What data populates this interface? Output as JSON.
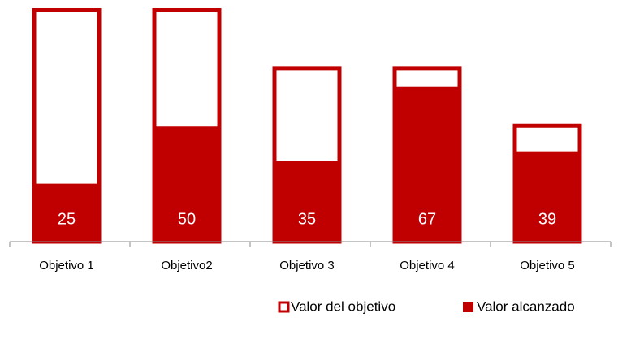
{
  "chart_data": {
    "type": "bar",
    "categories": [
      "Objetivo 1",
      "Objetivo2",
      "Objetivo 3",
      "Objetivo 4",
      "Objetivo 5"
    ],
    "series": [
      {
        "name": "Valor del objetivo",
        "color": "#c00000",
        "values": [
          100,
          100,
          75,
          75,
          50
        ]
      },
      {
        "name": "Valor alcanzado",
        "color": "#c00000",
        "values": [
          25,
          50,
          35,
          67,
          39
        ]
      }
    ],
    "ylim": [
      0,
      100
    ],
    "legend": "bottom-right"
  }
}
